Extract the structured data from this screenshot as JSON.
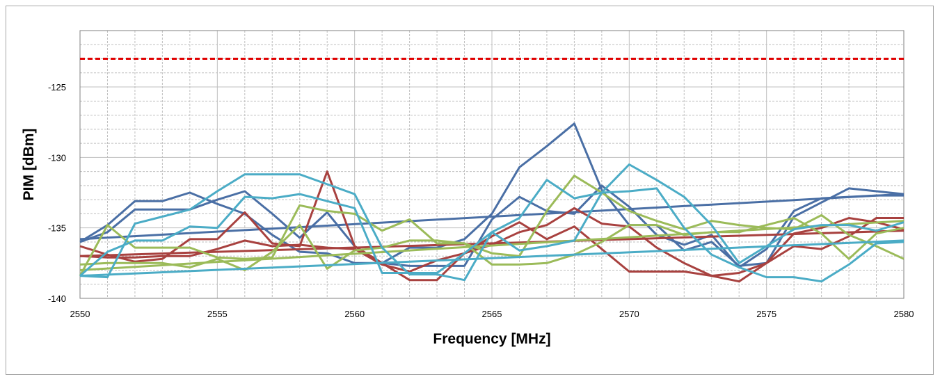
{
  "chart_data": {
    "type": "line",
    "title": "",
    "xlabel": "Frequency [MHz]",
    "ylabel": "PIM [dBm]",
    "xlim": [
      2550,
      2580
    ],
    "ylim": [
      -140,
      -121
    ],
    "x_ticks": [
      2550,
      2555,
      2560,
      2565,
      2570,
      2575,
      2580
    ],
    "y_ticks": [
      -125,
      -130,
      -135,
      -140
    ],
    "grid": true,
    "legend": "none",
    "limit_line": {
      "y": -123,
      "color": "#e00000",
      "style": "dashed"
    },
    "series": [
      {
        "color": "#4a6fa5",
        "x": [
          2550,
          2551,
          2552,
          2553,
          2554,
          2555,
          2556,
          2557,
          2558,
          2559,
          2560,
          2561,
          2562,
          2563,
          2564,
          2565,
          2566,
          2567,
          2568,
          2569,
          2570,
          2571,
          2572,
          2573,
          2574,
          2575,
          2576,
          2577,
          2578,
          2579,
          2580
        ],
        "y": [
          -136,
          -134.8,
          -133.1,
          -133.1,
          -132.5,
          -133.3,
          -134,
          -135.5,
          -136.7,
          -136.8,
          -137.5,
          -137.5,
          -136.4,
          -136.4,
          -135.8,
          -134,
          -130.7,
          -129.2,
          -127.6,
          -132.3,
          -134.8,
          -134.8,
          -136.6,
          -136,
          -137.7,
          -137.5,
          -134.2,
          -133.2,
          -132.2,
          -132.4,
          -132.6
        ]
      },
      {
        "color": "#4a6fa5",
        "x": [
          2550,
          2551,
          2552,
          2553,
          2554,
          2555,
          2556,
          2557,
          2558,
          2559,
          2560,
          2561,
          2562,
          2563,
          2564,
          2565,
          2566,
          2567,
          2568,
          2569,
          2570,
          2571,
          2572,
          2573,
          2574,
          2575,
          2576,
          2577,
          2578,
          2579,
          2580
        ],
        "y": [
          -136,
          -135.3,
          -133.7,
          -133.7,
          -133.7,
          -133,
          -132.4,
          -134,
          -135.7,
          -133.9,
          -136.3,
          -137.5,
          -137.7,
          -137.7,
          -137.7,
          -134.4,
          -132.8,
          -133.8,
          -134,
          -132,
          -133.5,
          -135.5,
          -136.2,
          -135.5,
          -137.8,
          -136.5,
          -133.8,
          -132.9,
          -132.8,
          -132.7,
          -132.7
        ]
      },
      {
        "color": "#4a6fa5",
        "x": [
          2550,
          2580
        ],
        "y": [
          -135.8,
          -132.6
        ]
      },
      {
        "color": "#a8413f",
        "x": [
          2550,
          2551,
          2552,
          2553,
          2554,
          2555,
          2556,
          2557,
          2558,
          2559,
          2560,
          2561,
          2562,
          2563,
          2564,
          2565,
          2566,
          2567,
          2568,
          2569,
          2570,
          2571,
          2572,
          2573,
          2574,
          2575,
          2576,
          2577,
          2578,
          2579,
          2580
        ],
        "y": [
          -136.3,
          -136.9,
          -137.4,
          -137.2,
          -135.8,
          -135.8,
          -133.9,
          -136.1,
          -136.3,
          -131,
          -136.3,
          -137.5,
          -138.7,
          -138.7,
          -136.8,
          -135.6,
          -134.6,
          -135.8,
          -134.9,
          -136.5,
          -138.1,
          -138.1,
          -138.1,
          -138.4,
          -138.8,
          -137.5,
          -136.3,
          -136.5,
          -135.6,
          -134.3,
          -134.3
        ]
      },
      {
        "color": "#a8413f",
        "x": [
          2550,
          2551,
          2552,
          2553,
          2554,
          2555,
          2556,
          2557,
          2558,
          2559,
          2560,
          2561,
          2562,
          2563,
          2564,
          2565,
          2566,
          2567,
          2568,
          2569,
          2570,
          2571,
          2572,
          2573,
          2574,
          2575,
          2576,
          2577,
          2578,
          2579,
          2580
        ],
        "y": [
          -137,
          -137.1,
          -137.1,
          -137,
          -137,
          -136.5,
          -135.9,
          -136.3,
          -136.2,
          -136.4,
          -136.5,
          -137.6,
          -138.1,
          -137.3,
          -136.8,
          -136.2,
          -135.3,
          -134.8,
          -133.6,
          -134.7,
          -134.9,
          -136.4,
          -137.5,
          -138.4,
          -138.2,
          -137.5,
          -135.4,
          -135,
          -134.3,
          -134.6,
          -135.1
        ]
      },
      {
        "color": "#a8413f",
        "x": [
          2550,
          2580
        ],
        "y": [
          -137,
          -135.2
        ]
      },
      {
        "color": "#9bbb59",
        "x": [
          2550,
          2551,
          2552,
          2553,
          2554,
          2555,
          2556,
          2557,
          2558,
          2559,
          2560,
          2561,
          2562,
          2563,
          2564,
          2565,
          2566,
          2567,
          2568,
          2569,
          2570,
          2571,
          2572,
          2573,
          2574,
          2575,
          2576,
          2577,
          2578,
          2579,
          2580
        ],
        "y": [
          -138.4,
          -134.8,
          -136.4,
          -136.4,
          -136.4,
          -137.1,
          -137.2,
          -137.1,
          -133.4,
          -133.8,
          -134,
          -135.2,
          -134.4,
          -136.1,
          -136.1,
          -136.8,
          -137,
          -133.8,
          -131.3,
          -132.5,
          -133.8,
          -134.5,
          -135.1,
          -134.5,
          -134.8,
          -135,
          -135.1,
          -134.1,
          -135.5,
          -136.3,
          -137.2
        ]
      },
      {
        "color": "#9bbb59",
        "x": [
          2550,
          2551,
          2552,
          2553,
          2554,
          2555,
          2556,
          2557,
          2558,
          2559,
          2560,
          2561,
          2562,
          2563,
          2564,
          2565,
          2566,
          2567,
          2568,
          2569,
          2570,
          2571,
          2572,
          2573,
          2574,
          2575,
          2576,
          2577,
          2578,
          2579,
          2580
        ],
        "y": [
          -137.6,
          -137.5,
          -137.5,
          -137.5,
          -137.8,
          -137.2,
          -138,
          -136.7,
          -134.8,
          -137.9,
          -136.6,
          -136.4,
          -135.9,
          -135.9,
          -136.1,
          -137.6,
          -137.6,
          -137.5,
          -136.9,
          -136,
          -134.8,
          -134.8,
          -135.5,
          -135.3,
          -135.3,
          -134.8,
          -134.3,
          -135.4,
          -137.2,
          -135.4,
          -135
        ]
      },
      {
        "color": "#9bbb59",
        "x": [
          2550,
          2580
        ],
        "y": [
          -138,
          -134.5
        ]
      },
      {
        "color": "#4bacc6",
        "x": [
          2550,
          2551,
          2552,
          2553,
          2554,
          2555,
          2556,
          2557,
          2558,
          2559,
          2560,
          2561,
          2562,
          2563,
          2564,
          2565,
          2566,
          2567,
          2568,
          2569,
          2570,
          2571,
          2572,
          2573,
          2574,
          2575,
          2576,
          2577,
          2578,
          2579,
          2580
        ],
        "y": [
          -138.4,
          -138.5,
          -134.7,
          -134.2,
          -133.7,
          -132.4,
          -131.2,
          -131.2,
          -131.2,
          -131.9,
          -132.6,
          -136.4,
          -138.3,
          -138.3,
          -138.7,
          -135.3,
          -134.3,
          -131.6,
          -132.9,
          -132.5,
          -130.5,
          -131.6,
          -132.8,
          -134.8,
          -137.5,
          -136.3,
          -135.1,
          -134.8,
          -134.8,
          -135.2,
          -134.6
        ]
      },
      {
        "color": "#4bacc6",
        "x": [
          2550,
          2551,
          2552,
          2553,
          2554,
          2555,
          2556,
          2557,
          2558,
          2559,
          2560,
          2561,
          2562,
          2563,
          2564,
          2565,
          2566,
          2567,
          2568,
          2569,
          2570,
          2571,
          2572,
          2573,
          2574,
          2575,
          2576,
          2577,
          2578,
          2579,
          2580
        ],
        "y": [
          -138.4,
          -136.7,
          -135.9,
          -135.9,
          -134.9,
          -135,
          -132.8,
          -132.9,
          -132.6,
          -133.1,
          -133.6,
          -138.2,
          -138.2,
          -138.2,
          -136.8,
          -135.3,
          -136.6,
          -136.3,
          -135.9,
          -132.5,
          -132.4,
          -132.2,
          -135,
          -136.9,
          -137.8,
          -138.5,
          -138.5,
          -138.8,
          -137.6,
          -136.1,
          -136
        ]
      },
      {
        "color": "#4bacc6",
        "x": [
          2550,
          2580
        ],
        "y": [
          -138.4,
          -135.9
        ]
      }
    ]
  }
}
